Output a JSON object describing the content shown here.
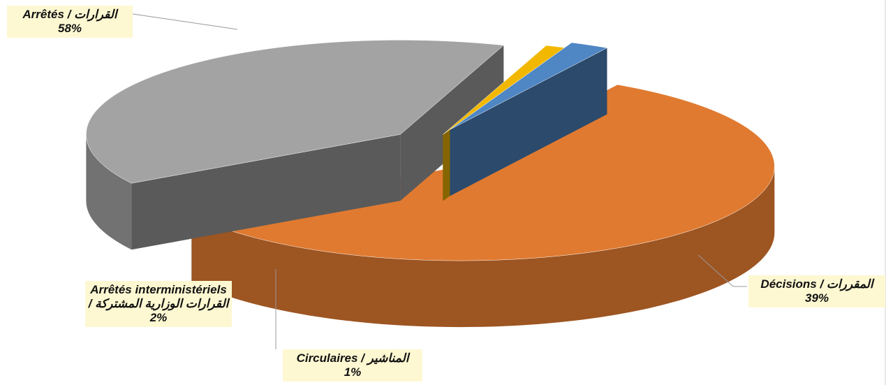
{
  "chart_data": {
    "type": "pie",
    "categories": [
      "Arrêtés / القرارات",
      "Décisions / المقررات",
      "Circulaires / المناشير",
      "Arrêtés interministériels / القرارات الوزارية المشتركة"
    ],
    "values": [
      58,
      39,
      1,
      2
    ],
    "value_labels": [
      "58%",
      "39%",
      "1%",
      "2%"
    ],
    "colors": [
      "#e07a30",
      "#a3a3a3",
      "#f2b800",
      "#4f86c4"
    ]
  }
}
